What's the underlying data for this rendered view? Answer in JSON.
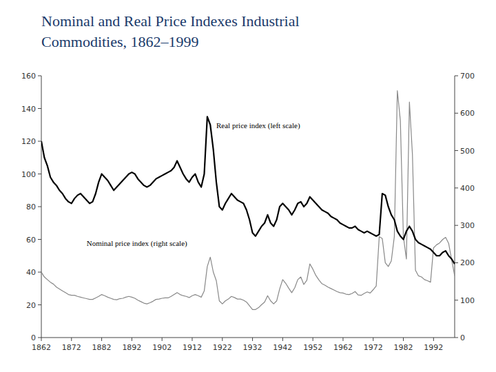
{
  "chart_data": {
    "type": "line",
    "title": "Nominal and Real Price Indexes Industrial",
    "subtitle": "Commodities, 1862–1999",
    "x": [
      1862,
      1863,
      1864,
      1865,
      1866,
      1867,
      1868,
      1869,
      1870,
      1871,
      1872,
      1873,
      1874,
      1875,
      1876,
      1877,
      1878,
      1879,
      1880,
      1881,
      1882,
      1883,
      1884,
      1885,
      1886,
      1887,
      1888,
      1889,
      1890,
      1891,
      1892,
      1893,
      1894,
      1895,
      1896,
      1897,
      1898,
      1899,
      1900,
      1901,
      1902,
      1903,
      1904,
      1905,
      1906,
      1907,
      1908,
      1909,
      1910,
      1911,
      1912,
      1913,
      1914,
      1915,
      1916,
      1917,
      1918,
      1919,
      1920,
      1921,
      1922,
      1923,
      1924,
      1925,
      1926,
      1927,
      1928,
      1929,
      1930,
      1931,
      1932,
      1933,
      1934,
      1935,
      1936,
      1937,
      1938,
      1939,
      1940,
      1941,
      1942,
      1943,
      1944,
      1945,
      1946,
      1947,
      1948,
      1949,
      1950,
      1951,
      1952,
      1953,
      1954,
      1955,
      1956,
      1957,
      1958,
      1959,
      1960,
      1961,
      1962,
      1963,
      1964,
      1965,
      1966,
      1967,
      1968,
      1969,
      1970,
      1971,
      1972,
      1973,
      1974,
      1975,
      1976,
      1977,
      1978,
      1979,
      1980,
      1981,
      1982,
      1983,
      1984,
      1985,
      1986,
      1987,
      1988,
      1989,
      1990,
      1991,
      1992,
      1993,
      1994,
      1995,
      1996,
      1997,
      1998,
      1999
    ],
    "series": [
      {
        "color": "#000000",
        "values": [
          120,
          110,
          105,
          98,
          95,
          93,
          90,
          88,
          85,
          83,
          82,
          85,
          87,
          88,
          86,
          84,
          82,
          83,
          88,
          95,
          100,
          98,
          96,
          93,
          90,
          92,
          94,
          96,
          98,
          100,
          101,
          100,
          97,
          95,
          93,
          92,
          93,
          95,
          97,
          98,
          99,
          100,
          101,
          102,
          104,
          108,
          104,
          100,
          97,
          95,
          98,
          100,
          95,
          92,
          100,
          135,
          130,
          115,
          95,
          80,
          78,
          82,
          85,
          88,
          86,
          84,
          83,
          82,
          78,
          72,
          64,
          62,
          65,
          68,
          70,
          75,
          70,
          68,
          72,
          80,
          82,
          80,
          78,
          75,
          78,
          82,
          83,
          80,
          82,
          86,
          84,
          82,
          80,
          78,
          77,
          76,
          74,
          73,
          72,
          70,
          69,
          68,
          67,
          67,
          68,
          66,
          65,
          64,
          65,
          64,
          63,
          62,
          63,
          88,
          87,
          80,
          75,
          72,
          65,
          62,
          60,
          65,
          68,
          65,
          60,
          58,
          57,
          56,
          55,
          54,
          52,
          50,
          50,
          52,
          53,
          50,
          48,
          45
        ]
      },
      {
        "color": "#888888",
        "axis": "y2",
        "values": [
          175,
          162,
          155,
          148,
          143,
          135,
          130,
          125,
          120,
          115,
          113,
          113,
          110,
          108,
          106,
          104,
          102,
          102,
          106,
          110,
          115,
          112,
          108,
          105,
          102,
          101,
          104,
          105,
          108,
          110,
          108,
          105,
          100,
          96,
          92,
          90,
          93,
          97,
          102,
          103,
          105,
          106,
          106,
          110,
          115,
          120,
          115,
          112,
          110,
          107,
          112,
          115,
          112,
          108,
          125,
          190,
          215,
          175,
          152,
          98,
          90,
          98,
          103,
          110,
          107,
          103,
          103,
          100,
          95,
          85,
          75,
          75,
          80,
          88,
          95,
          112,
          98,
          90,
          98,
          130,
          155,
          145,
          132,
          120,
          133,
          155,
          162,
          142,
          153,
          197,
          183,
          166,
          154,
          144,
          140,
          135,
          131,
          127,
          123,
          120,
          119,
          116,
          115,
          118,
          123,
          114,
          113,
          118,
          122,
          119,
          128,
          138,
          270,
          265,
          200,
          190,
          205,
          270,
          660,
          580,
          270,
          210,
          630,
          490,
          180,
          165,
          162,
          155,
          152,
          148,
          240,
          248,
          253,
          262,
          268,
          252,
          208,
          165
        ]
      }
    ],
    "annotations": [
      {
        "text": "Real price index (left scale)",
        "x": 1920,
        "y": 128
      },
      {
        "text": "Nominal price index (right scale)",
        "x": 1877,
        "y": 56
      }
    ],
    "xlim": [
      1862,
      1999
    ],
    "xticks": [
      1862,
      1872,
      1882,
      1892,
      1902,
      1912,
      1922,
      1932,
      1942,
      1952,
      1962,
      1972,
      1982,
      1992
    ],
    "ylim": [
      0,
      160
    ],
    "yticks": [
      0,
      20,
      40,
      60,
      80,
      100,
      120,
      140,
      160
    ],
    "y2lim": [
      0,
      700
    ],
    "y2ticks": [
      0,
      100,
      200,
      300,
      400,
      500,
      600,
      700
    ],
    "grid": false
  }
}
